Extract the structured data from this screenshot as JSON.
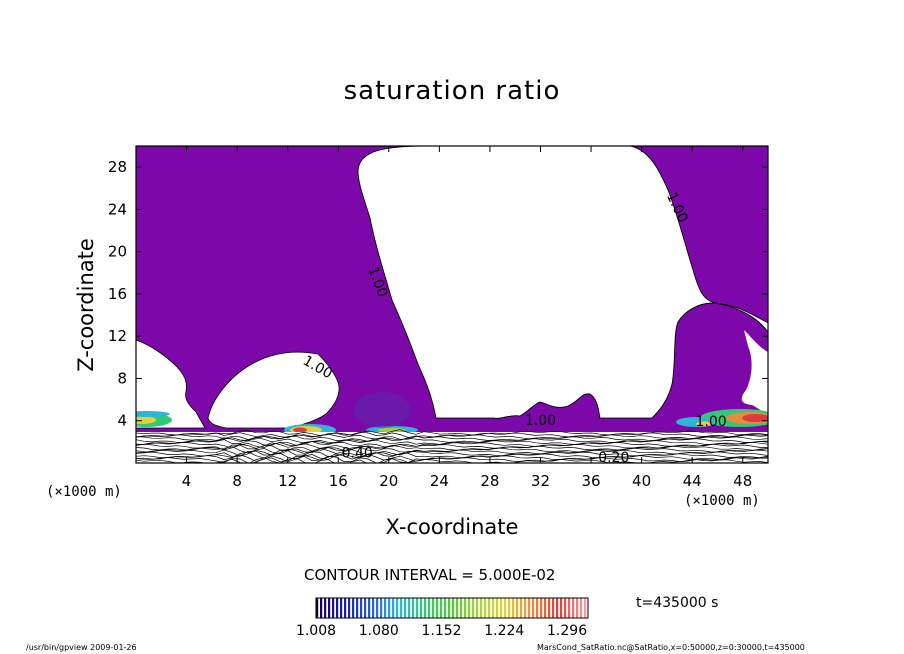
{
  "chart_data": {
    "type": "heatmap",
    "title": "saturation ratio",
    "xlabel": "X-coordinate",
    "ylabel": "Z-coordinate",
    "x_unit_left": "(×1000 m)",
    "x_unit_right": "(×1000 m)",
    "xlim": [
      0,
      50
    ],
    "ylim": [
      0,
      30
    ],
    "x_ticks": [
      4,
      8,
      12,
      16,
      20,
      24,
      28,
      32,
      36,
      40,
      44,
      48
    ],
    "y_ticks": [
      4,
      8,
      12,
      16,
      20,
      24,
      28
    ],
    "contour_interval": "CONTOUR INTERVAL = 5.000E-02",
    "contour_labels": [
      {
        "text": "1.00",
        "x": 42.5,
        "y": 24.0
      },
      {
        "text": "1.00",
        "x": 18.8,
        "y": 17.0
      },
      {
        "text": "1.00",
        "x": 14.2,
        "y": 8.7
      },
      {
        "text": "1.00",
        "x": 32.0,
        "y": 3.6
      },
      {
        "text": "1.00",
        "x": 45.5,
        "y": 3.5
      },
      {
        "text": "0.20",
        "x": 37.8,
        "y": 0.1
      },
      {
        "text": "0.40",
        "x": 17.5,
        "y": 0.5
      }
    ],
    "colorbar": {
      "ticks": [
        "1.008",
        "1.080",
        "1.152",
        "1.224",
        "1.296"
      ],
      "min": 1.008,
      "max": 1.32,
      "colors": [
        "#140050",
        "#1a1aa0",
        "#2a5ad2",
        "#2fb4d8",
        "#33c878",
        "#52c83c",
        "#a8d23c",
        "#e0d23c",
        "#e88c3c",
        "#dc3c3c",
        "#f0a0a0"
      ]
    },
    "time_label": "t=435000 s"
  },
  "footer": {
    "left": "/usr/bin/gpview  2009-01-26",
    "right": "MarsCond_SatRatio.nc@SatRatio,x=0:50000,z=0:30000,t=435000"
  },
  "colors": {
    "supersaturated_fill": "#7d08aa",
    "subsaturated_fill": "#ffffff",
    "contour_line": "#000000"
  }
}
